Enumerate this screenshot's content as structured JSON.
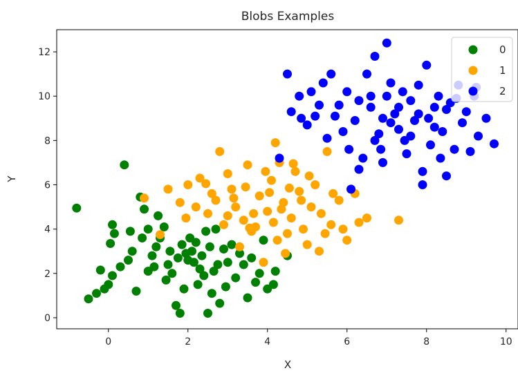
{
  "chart_data": {
    "type": "scatter",
    "title": "Blobs Examples",
    "xlabel": "X",
    "ylabel": "Y",
    "xlim": [
      -1.3,
      10.3
    ],
    "ylim": [
      -0.5,
      13.0
    ],
    "xticks": [
      0,
      2,
      4,
      6,
      8,
      10
    ],
    "xtick_labels": [
      "0",
      "2",
      "4",
      "6",
      "8",
      "10"
    ],
    "yticks": [
      0,
      2,
      4,
      6,
      8,
      10,
      12
    ],
    "ytick_labels": [
      "0",
      "2",
      "4",
      "6",
      "8",
      "10",
      "12"
    ],
    "grid": false,
    "legend_position": "top-right",
    "series": [
      {
        "name": "0",
        "color": "#008000",
        "points": [
          [
            -0.8,
            4.95
          ],
          [
            0.4,
            6.9
          ],
          [
            -0.5,
            0.85
          ],
          [
            -0.3,
            1.1
          ],
          [
            -0.1,
            1.3
          ],
          [
            0.0,
            1.5
          ],
          [
            0.1,
            1.9
          ],
          [
            -0.2,
            2.15
          ],
          [
            0.05,
            3.35
          ],
          [
            0.1,
            4.2
          ],
          [
            0.15,
            3.8
          ],
          [
            0.3,
            2.3
          ],
          [
            0.5,
            2.6
          ],
          [
            0.7,
            1.2
          ],
          [
            0.8,
            5.45
          ],
          [
            0.9,
            4.9
          ],
          [
            1.0,
            2.1
          ],
          [
            1.1,
            2.8
          ],
          [
            1.2,
            3.2
          ],
          [
            1.3,
            3.6
          ],
          [
            1.4,
            4.1
          ],
          [
            1.5,
            2.4
          ],
          [
            1.6,
            2.0
          ],
          [
            1.7,
            0.55
          ],
          [
            1.8,
            0.2
          ],
          [
            1.9,
            1.3
          ],
          [
            2.0,
            2.6
          ],
          [
            2.1,
            3.0
          ],
          [
            2.2,
            3.4
          ],
          [
            2.3,
            2.2
          ],
          [
            2.4,
            1.9
          ],
          [
            2.5,
            0.2
          ],
          [
            2.6,
            1.1
          ],
          [
            2.7,
            4.0
          ],
          [
            2.8,
            0.65
          ],
          [
            2.9,
            3.1
          ],
          [
            3.0,
            2.5
          ],
          [
            3.2,
            1.8
          ],
          [
            3.4,
            2.4
          ],
          [
            3.5,
            0.9
          ],
          [
            3.7,
            1.6
          ],
          [
            3.8,
            2.0
          ],
          [
            3.9,
            3.5
          ],
          [
            4.0,
            1.3
          ],
          [
            4.15,
            1.5
          ],
          [
            4.2,
            2.1
          ],
          [
            4.5,
            2.8
          ],
          [
            1.55,
            3.0
          ],
          [
            1.75,
            2.7
          ],
          [
            1.95,
            2.9
          ],
          [
            2.15,
            2.5
          ],
          [
            2.35,
            2.8
          ],
          [
            2.55,
            3.2
          ],
          [
            2.75,
            2.4
          ],
          [
            1.85,
            3.3
          ],
          [
            2.05,
            3.6
          ],
          [
            2.45,
            3.9
          ],
          [
            2.65,
            2.1
          ],
          [
            1.45,
            1.7
          ],
          [
            3.1,
            3.3
          ],
          [
            3.3,
            2.9
          ],
          [
            0.6,
            3.0
          ],
          [
            0.85,
            3.6
          ],
          [
            1.25,
            4.6
          ],
          [
            1.0,
            4.0
          ],
          [
            2.25,
            1.5
          ],
          [
            2.95,
            1.4
          ],
          [
            3.6,
            2.7
          ],
          [
            1.15,
            2.3
          ],
          [
            0.55,
            3.9
          ]
        ]
      },
      {
        "name": "1",
        "color": "#ffa500",
        "points": [
          [
            0.9,
            5.4
          ],
          [
            1.3,
            3.75
          ],
          [
            1.5,
            5.8
          ],
          [
            1.8,
            5.2
          ],
          [
            2.0,
            6.0
          ],
          [
            2.3,
            6.3
          ],
          [
            2.6,
            5.6
          ],
          [
            2.8,
            7.5
          ],
          [
            3.0,
            6.5
          ],
          [
            3.2,
            5.0
          ],
          [
            3.4,
            4.4
          ],
          [
            3.5,
            6.9
          ],
          [
            3.6,
            3.9
          ],
          [
            3.8,
            5.5
          ],
          [
            3.9,
            2.5
          ],
          [
            4.0,
            4.8
          ],
          [
            4.1,
            6.2
          ],
          [
            4.2,
            7.9
          ],
          [
            4.3,
            7.0
          ],
          [
            4.4,
            5.2
          ],
          [
            4.5,
            3.8
          ],
          [
            4.6,
            4.5
          ],
          [
            4.7,
            6.6
          ],
          [
            4.8,
            5.7
          ],
          [
            4.9,
            4.0
          ],
          [
            5.0,
            3.3
          ],
          [
            5.1,
            5.0
          ],
          [
            5.2,
            6.0
          ],
          [
            5.3,
            3.0
          ],
          [
            5.5,
            7.5
          ],
          [
            5.6,
            4.2
          ],
          [
            5.8,
            5.3
          ],
          [
            5.9,
            4.0
          ],
          [
            6.0,
            3.5
          ],
          [
            6.2,
            5.6
          ],
          [
            6.3,
            4.3
          ],
          [
            6.5,
            4.5
          ],
          [
            7.3,
            4.4
          ],
          [
            2.9,
            4.2
          ],
          [
            3.3,
            3.2
          ],
          [
            3.7,
            4.1
          ],
          [
            4.25,
            3.5
          ],
          [
            4.45,
            2.9
          ],
          [
            4.65,
            6.95
          ],
          [
            3.1,
            5.8
          ],
          [
            2.5,
            4.7
          ],
          [
            2.7,
            5.3
          ],
          [
            3.0,
            4.6
          ],
          [
            3.45,
            5.9
          ],
          [
            3.95,
            6.6
          ],
          [
            4.35,
            4.9
          ],
          [
            4.85,
            5.3
          ],
          [
            5.35,
            4.7
          ],
          [
            5.65,
            5.6
          ],
          [
            4.15,
            4.3
          ],
          [
            3.65,
            4.7
          ],
          [
            3.15,
            5.4
          ],
          [
            2.2,
            5.0
          ],
          [
            1.95,
            4.5
          ],
          [
            2.45,
            6.05
          ],
          [
            4.55,
            5.85
          ],
          [
            5.05,
            6.4
          ],
          [
            5.45,
            3.8
          ],
          [
            3.55,
            4.05
          ],
          [
            4.05,
            5.65
          ]
        ]
      },
      {
        "name": "2",
        "color": "#0000ff",
        "points": [
          [
            4.3,
            7.2
          ],
          [
            4.5,
            11.0
          ],
          [
            4.6,
            9.3
          ],
          [
            4.8,
            10.0
          ],
          [
            5.0,
            8.7
          ],
          [
            5.2,
            9.1
          ],
          [
            5.4,
            10.6
          ],
          [
            5.5,
            8.1
          ],
          [
            5.6,
            11.0
          ],
          [
            5.8,
            9.6
          ],
          [
            6.0,
            10.2
          ],
          [
            6.1,
            5.8
          ],
          [
            6.2,
            8.9
          ],
          [
            6.3,
            6.7
          ],
          [
            6.5,
            11.0
          ],
          [
            6.6,
            9.5
          ],
          [
            6.7,
            11.8
          ],
          [
            6.8,
            8.3
          ],
          [
            6.9,
            7.0
          ],
          [
            7.0,
            12.4
          ],
          [
            7.1,
            10.6
          ],
          [
            7.2,
            9.2
          ],
          [
            7.3,
            8.5
          ],
          [
            7.4,
            10.2
          ],
          [
            7.5,
            7.4
          ],
          [
            7.6,
            9.8
          ],
          [
            7.7,
            8.9
          ],
          [
            7.8,
            10.5
          ],
          [
            7.9,
            6.6
          ],
          [
            8.0,
            11.4
          ],
          [
            8.1,
            7.8
          ],
          [
            8.2,
            9.5
          ],
          [
            8.3,
            10.0
          ],
          [
            8.4,
            8.4
          ],
          [
            8.5,
            6.4
          ],
          [
            8.6,
            9.7
          ],
          [
            8.7,
            7.6
          ],
          [
            8.8,
            10.5
          ],
          [
            8.9,
            8.8
          ],
          [
            9.0,
            9.3
          ],
          [
            9.1,
            7.5
          ],
          [
            9.2,
            10.0
          ],
          [
            9.3,
            8.2
          ],
          [
            9.5,
            9.0
          ],
          [
            9.7,
            7.85
          ],
          [
            9.25,
            10.4
          ],
          [
            7.9,
            6.0
          ],
          [
            6.4,
            7.2
          ],
          [
            6.7,
            8.0
          ],
          [
            6.9,
            9.0
          ],
          [
            7.1,
            8.8
          ],
          [
            7.3,
            9.5
          ],
          [
            7.6,
            8.2
          ],
          [
            7.8,
            9.2
          ],
          [
            8.2,
            8.6
          ],
          [
            8.5,
            9.4
          ],
          [
            6.6,
            10.0
          ],
          [
            7.0,
            10.0
          ],
          [
            6.3,
            9.8
          ],
          [
            5.9,
            8.4
          ],
          [
            5.7,
            9.1
          ],
          [
            6.05,
            7.6
          ],
          [
            6.85,
            7.6
          ],
          [
            7.45,
            8.0
          ],
          [
            8.05,
            9.0
          ],
          [
            8.35,
            7.2
          ],
          [
            8.75,
            9.9
          ],
          [
            5.3,
            9.6
          ],
          [
            5.1,
            10.2
          ],
          [
            4.85,
            9.0
          ]
        ]
      }
    ]
  }
}
